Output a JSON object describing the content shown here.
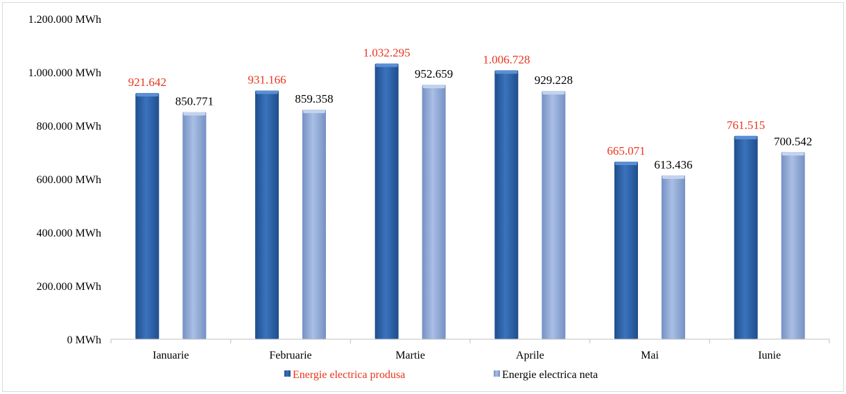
{
  "chart_data": {
    "type": "bar",
    "categories": [
      "Ianuarie",
      "Februarie",
      "Martie",
      "Aprile",
      "Mai",
      "Iunie"
    ],
    "series": [
      {
        "name": "Energie electrica produsa",
        "values": [
          921642,
          931166,
          1032295,
          1006728,
          665071,
          761515
        ],
        "labels": [
          "921.642",
          "931.166",
          "1.032.295",
          "1.006.728",
          "665.071",
          "761.515"
        ],
        "color": "#2e63a8",
        "label_color": "#e8341c"
      },
      {
        "name": "Energie electrica neta",
        "values": [
          850771,
          859358,
          952659,
          929228,
          613436,
          700542
        ],
        "labels": [
          "850.771",
          "859.358",
          "952.659",
          "929.228",
          "613.436",
          "700.542"
        ],
        "color": "#8ea8d6",
        "label_color": "#000000"
      }
    ],
    "ylim": [
      0,
      1200000
    ],
    "yticks": [
      0,
      200000,
      400000,
      600000,
      800000,
      1000000,
      1200000
    ],
    "ytick_labels": [
      "0 MWh",
      "200.000 MWh",
      "400.000 MWh",
      "600.000 MWh",
      "800.000 MWh",
      "1.000.000 MWh",
      "1.200.000 MWh"
    ],
    "grid": false,
    "legend": "bottom"
  }
}
